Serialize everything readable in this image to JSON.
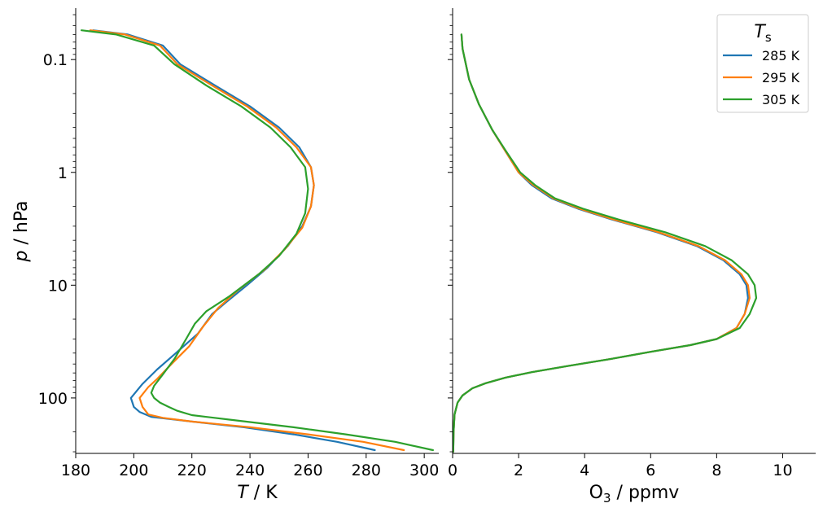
{
  "figure": {
    "shared_ylabel_var": "p",
    "shared_ylabel_unit": " / hPa",
    "legend": {
      "title_main": "T",
      "title_sub": "s",
      "placement": "upper right of right panel"
    }
  },
  "chart_data": [
    {
      "type": "line",
      "panel": "temperature",
      "xlabel_var": "T",
      "xlabel_unit": " / K",
      "ylabel": "p / hPa",
      "xlim": [
        180,
        305
      ],
      "ylim": [
        310,
        0.035
      ],
      "yscale": "log",
      "yticks": [
        0.1,
        1,
        10,
        100
      ],
      "ytick_labels": [
        "0.1",
        "1",
        "10",
        "100"
      ],
      "xticks": [
        180,
        200,
        220,
        240,
        260,
        280,
        300
      ],
      "xtick_labels": [
        "180",
        "200",
        "220",
        "240",
        "260",
        "280",
        "300"
      ],
      "grid": false,
      "series": [
        {
          "name": "285 K",
          "color": "#1f77b4",
          "points": [
            [
              283,
              290
            ],
            [
              270,
              245
            ],
            [
              255,
              210
            ],
            [
              238,
              182
            ],
            [
              220,
              162
            ],
            [
              206,
              147
            ],
            [
              202,
              133
            ],
            [
              200,
              120
            ],
            [
              199,
              100
            ],
            [
              203,
              75
            ],
            [
              208,
              56
            ],
            [
              214,
              41
            ],
            [
              222,
              27
            ],
            [
              227,
              18
            ],
            [
              232,
              14
            ],
            [
              239,
              10
            ],
            [
              246,
              7
            ],
            [
              253,
              4.5
            ],
            [
              258,
              3
            ],
            [
              261,
              2
            ],
            [
              262,
              1.3
            ],
            [
              261,
              0.9
            ],
            [
              257,
              0.6
            ],
            [
              250,
              0.4
            ],
            [
              240,
              0.26
            ],
            [
              228,
              0.17
            ],
            [
              216,
              0.11
            ],
            [
              210,
              0.075
            ],
            [
              198,
              0.06
            ],
            [
              186,
              0.055
            ]
          ]
        },
        {
          "name": "295 K",
          "color": "#ff7f0e",
          "points": [
            [
              293,
              290
            ],
            [
              279,
              245
            ],
            [
              260,
              210
            ],
            [
              240,
              182
            ],
            [
              220,
              162
            ],
            [
              210,
              150
            ],
            [
              205,
              140
            ],
            [
              203,
              120
            ],
            [
              202,
              100
            ],
            [
              205,
              80
            ],
            [
              208,
              68
            ],
            [
              213,
              50
            ],
            [
              219,
              35
            ],
            [
              224,
              23
            ],
            [
              229,
              16
            ],
            [
              236,
              11
            ],
            [
              245,
              7.3
            ],
            [
              252,
              4.8
            ],
            [
              258,
              3.1
            ],
            [
              261,
              2
            ],
            [
              262,
              1.3
            ],
            [
              261,
              0.9
            ],
            [
              256,
              0.6
            ],
            [
              249,
              0.4
            ],
            [
              239,
              0.26
            ],
            [
              227,
              0.17
            ],
            [
              215,
              0.11
            ],
            [
              209,
              0.075
            ],
            [
              197,
              0.06
            ],
            [
              185,
              0.055
            ]
          ]
        },
        {
          "name": "305 K",
          "color": "#2ca02c",
          "points": [
            [
              303,
              290
            ],
            [
              290,
              245
            ],
            [
              273,
              210
            ],
            [
              255,
              182
            ],
            [
              235,
              158
            ],
            [
              220,
              142
            ],
            [
              215,
              130
            ],
            [
              212,
              120
            ],
            [
              209,
              110
            ],
            [
              207,
              100
            ],
            [
              206,
              90
            ],
            [
              207,
              78
            ],
            [
              210,
              62
            ],
            [
              214,
              45
            ],
            [
              218,
              30
            ],
            [
              221,
              22
            ],
            [
              225,
              17
            ],
            [
              233,
              12.5
            ],
            [
              243,
              8
            ],
            [
              250,
              5.5
            ],
            [
              256,
              3.5
            ],
            [
              259,
              2.3
            ],
            [
              260,
              1.4
            ],
            [
              259,
              0.9
            ],
            [
              254,
              0.6
            ],
            [
              247,
              0.4
            ],
            [
              237,
              0.26
            ],
            [
              225,
              0.17
            ],
            [
              214,
              0.11
            ],
            [
              207,
              0.075
            ],
            [
              194,
              0.06
            ],
            [
              182,
              0.055
            ]
          ]
        }
      ]
    },
    {
      "type": "line",
      "panel": "ozone",
      "xlabel_pre": "O",
      "xlabel_sub": "3",
      "xlabel_unit": " / ppmv",
      "xlim": [
        0,
        11
      ],
      "ylim": [
        310,
        0.035
      ],
      "yscale": "log",
      "yticks": [
        0.1,
        1,
        10,
        100
      ],
      "ytick_labels": [
        "",
        "",
        "",
        ""
      ],
      "xticks": [
        0,
        2,
        4,
        6,
        8,
        10
      ],
      "xtick_labels": [
        "0",
        "2",
        "4",
        "6",
        "8",
        "10"
      ],
      "grid": false,
      "series": [
        {
          "name": "285 K",
          "color": "#1f77b4",
          "points": [
            [
              0.02,
              300
            ],
            [
              0.03,
              200
            ],
            [
              0.06,
              140
            ],
            [
              0.15,
              110
            ],
            [
              0.3,
              95
            ],
            [
              0.6,
              82
            ],
            [
              1.0,
              74
            ],
            [
              1.6,
              66
            ],
            [
              2.4,
              59
            ],
            [
              3.5,
              52
            ],
            [
              4.8,
              45
            ],
            [
              6.0,
              39
            ],
            [
              7.2,
              34
            ],
            [
              8.0,
              30
            ],
            [
              8.6,
              24
            ],
            [
              8.85,
              18
            ],
            [
              8.95,
              13
            ],
            [
              8.9,
              10
            ],
            [
              8.7,
              8
            ],
            [
              8.2,
              6
            ],
            [
              7.4,
              4.5
            ],
            [
              6.2,
              3.4
            ],
            [
              4.8,
              2.6
            ],
            [
              3.8,
              2.1
            ],
            [
              3.0,
              1.7
            ],
            [
              2.4,
              1.3
            ],
            [
              2.0,
              1.0
            ],
            [
              1.6,
              0.65
            ],
            [
              1.2,
              0.42
            ],
            [
              0.8,
              0.25
            ],
            [
              0.5,
              0.15
            ],
            [
              0.3,
              0.08
            ],
            [
              0.27,
              0.06
            ]
          ]
        },
        {
          "name": "295 K",
          "color": "#ff7f0e",
          "points": [
            [
              0.02,
              300
            ],
            [
              0.03,
              200
            ],
            [
              0.06,
              140
            ],
            [
              0.15,
              110
            ],
            [
              0.3,
              95
            ],
            [
              0.6,
              82
            ],
            [
              1.0,
              74
            ],
            [
              1.6,
              66
            ],
            [
              2.4,
              59
            ],
            [
              3.5,
              52
            ],
            [
              4.8,
              45
            ],
            [
              6.0,
              39
            ],
            [
              7.2,
              34
            ],
            [
              8.0,
              30
            ],
            [
              8.6,
              24
            ],
            [
              8.85,
              18
            ],
            [
              9.0,
              13
            ],
            [
              8.95,
              10
            ],
            [
              8.75,
              8
            ],
            [
              8.25,
              6
            ],
            [
              7.45,
              4.5
            ],
            [
              6.25,
              3.4
            ],
            [
              4.85,
              2.6
            ],
            [
              3.85,
              2.1
            ],
            [
              3.05,
              1.7
            ],
            [
              2.45,
              1.3
            ],
            [
              2.0,
              1.0
            ],
            [
              1.6,
              0.65
            ],
            [
              1.2,
              0.42
            ],
            [
              0.8,
              0.25
            ],
            [
              0.5,
              0.15
            ],
            [
              0.3,
              0.08
            ],
            [
              0.27,
              0.06
            ]
          ]
        },
        {
          "name": "305 K",
          "color": "#2ca02c",
          "points": [
            [
              0.02,
              300
            ],
            [
              0.03,
              200
            ],
            [
              0.06,
              140
            ],
            [
              0.15,
              110
            ],
            [
              0.3,
              95
            ],
            [
              0.6,
              82
            ],
            [
              1.0,
              74
            ],
            [
              1.6,
              66
            ],
            [
              2.4,
              59
            ],
            [
              3.5,
              52
            ],
            [
              4.8,
              45
            ],
            [
              6.0,
              39
            ],
            [
              7.2,
              34
            ],
            [
              8.0,
              30
            ],
            [
              8.7,
              24
            ],
            [
              9.0,
              18
            ],
            [
              9.2,
              13
            ],
            [
              9.15,
              10
            ],
            [
              8.95,
              8
            ],
            [
              8.45,
              6
            ],
            [
              7.65,
              4.5
            ],
            [
              6.45,
              3.4
            ],
            [
              5.0,
              2.6
            ],
            [
              3.95,
              2.1
            ],
            [
              3.1,
              1.7
            ],
            [
              2.5,
              1.3
            ],
            [
              2.05,
              1.0
            ],
            [
              1.62,
              0.65
            ],
            [
              1.2,
              0.42
            ],
            [
              0.8,
              0.25
            ],
            [
              0.5,
              0.15
            ],
            [
              0.3,
              0.08
            ],
            [
              0.27,
              0.06
            ]
          ]
        }
      ]
    }
  ]
}
